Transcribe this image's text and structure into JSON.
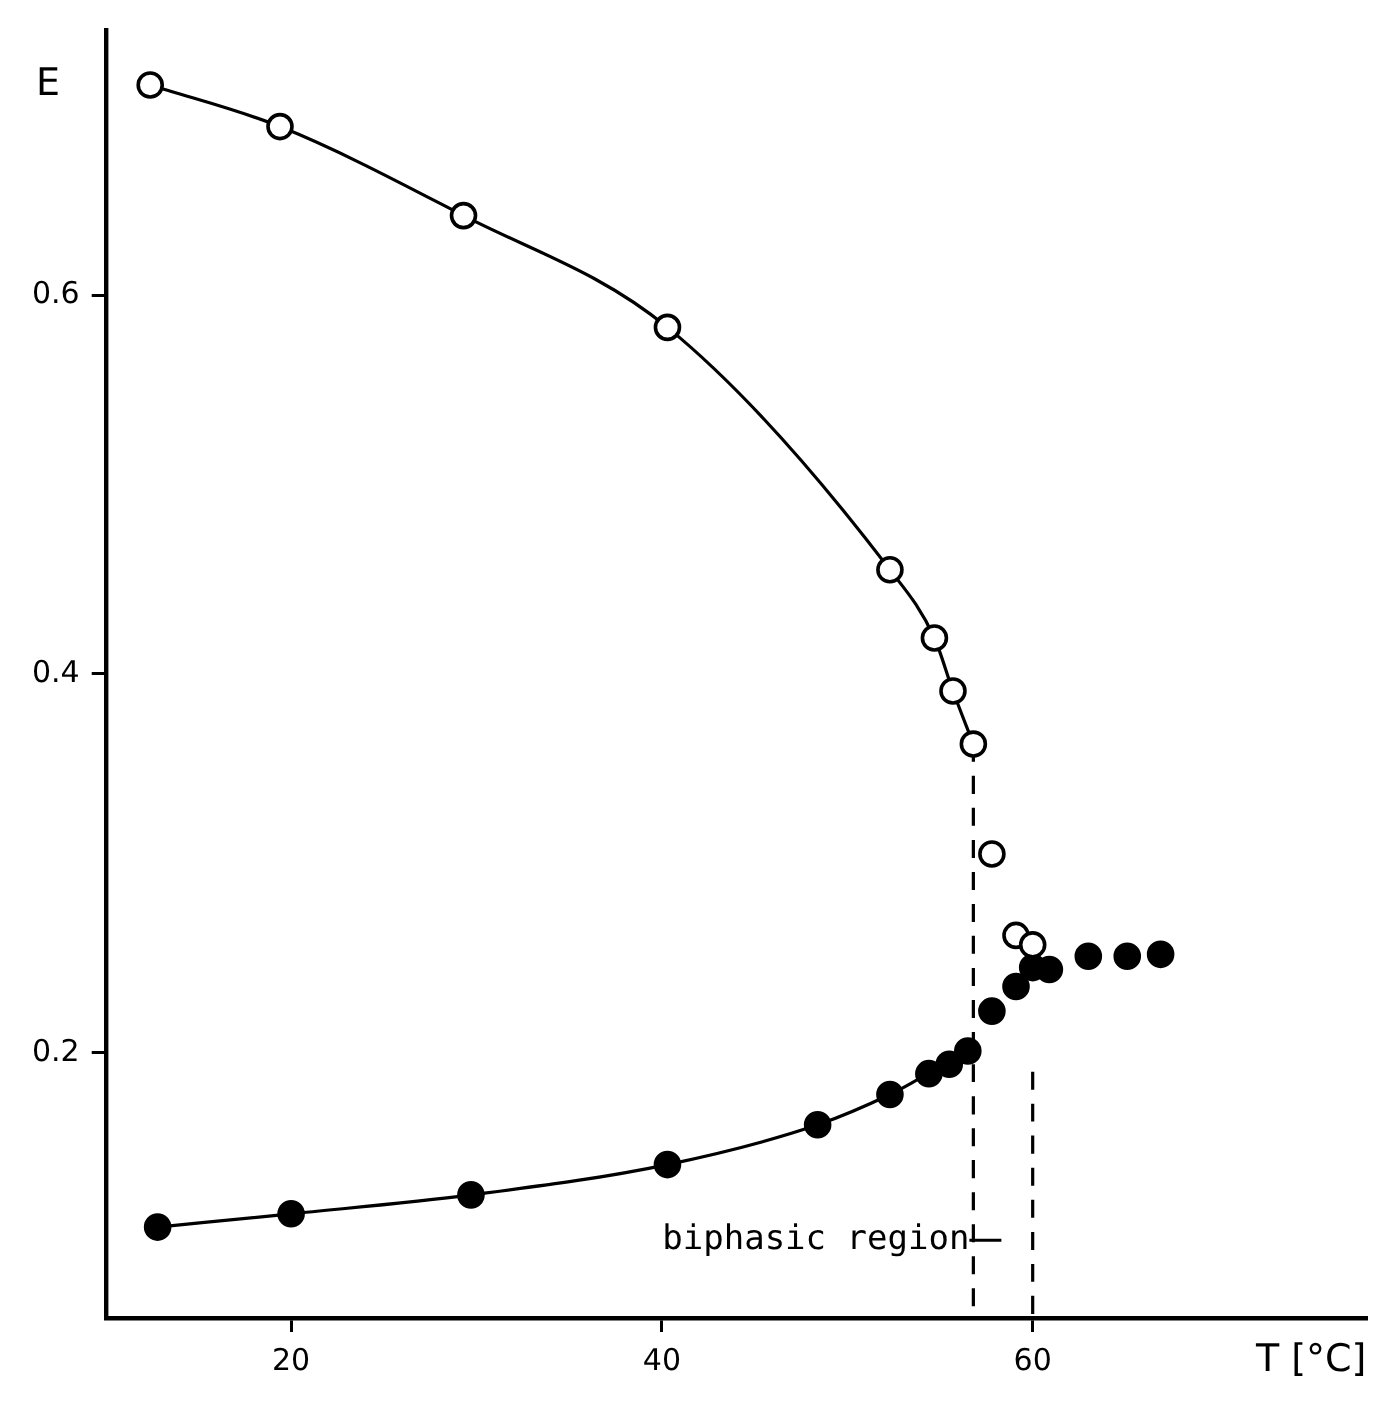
{
  "chart_data": {
    "type": "line",
    "xlabel": "T [°C]",
    "ylabel": "E",
    "xlim": [
      10,
      78
    ],
    "ylim": [
      0.06,
      0.74
    ],
    "xticks": [
      20,
      40,
      60
    ],
    "yticks": [
      0.2,
      0.4,
      0.6
    ],
    "grid": false,
    "legend": false,
    "marker": "circle",
    "series": [
      {
        "color": "#ffffff",
        "x": [
          12.4,
          19.4,
          29.3,
          40.3,
          52.3,
          54.7,
          55.7,
          56.8
        ],
        "values": [
          0.711,
          0.689,
          0.642,
          0.583,
          0.455,
          0.419,
          0.391,
          0.363
        ]
      },
      {
        "type": "scatter",
        "color": "#ffffff",
        "x": [
          57.8,
          59.1,
          60.0
        ],
        "values": [
          0.305,
          0.262,
          0.257
        ]
      },
      {
        "color": "#000000",
        "x": [
          12.8,
          20,
          29.7,
          40.3,
          48.4,
          52.3,
          54.4,
          55.5,
          56.5
        ],
        "values": [
          0.108,
          0.115,
          0.125,
          0.141,
          0.162,
          0.178,
          0.189,
          0.194,
          0.201
        ]
      },
      {
        "type": "scatter",
        "color": "#000000",
        "x": [
          57.8,
          59.1,
          60.0,
          60.9,
          63.0,
          65.1,
          66.9
        ],
        "values": [
          0.222,
          0.235,
          0.245,
          0.244,
          0.251,
          0.251,
          0.252
        ]
      },
      {
        "type": "line",
        "color": "#000000",
        "marker": "none",
        "line_style": "dashed",
        "x": [
          56.8,
          56.8
        ],
        "values": [
          0.363,
          0.06
        ]
      },
      {
        "type": "line",
        "color": "#000000",
        "marker": "none",
        "line_style": "dashed",
        "x": [
          60,
          60
        ],
        "values": [
          0.19,
          0.06
        ]
      }
    ],
    "annotations": [
      {
        "text": "biphasic region",
        "x": 56.8,
        "y": 0.101
      }
    ]
  }
}
